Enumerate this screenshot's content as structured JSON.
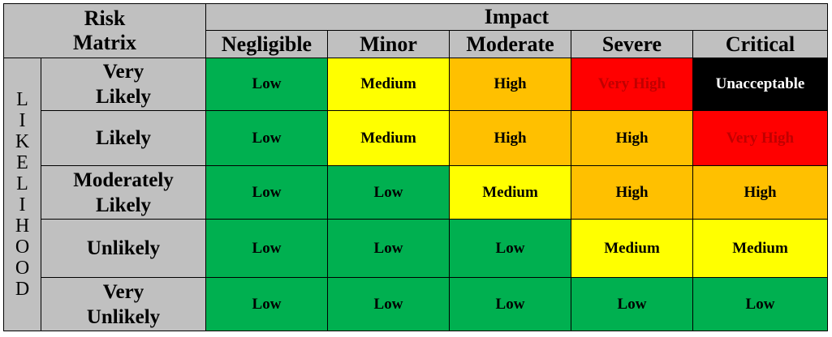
{
  "title_lines": [
    "Risk",
    "Matrix"
  ],
  "impact_header": "Impact",
  "impact_levels": [
    "Negligible",
    "Minor",
    "Moderate",
    "Severe",
    "Critical"
  ],
  "likelihood_letters": [
    "L",
    "I",
    "K",
    "E",
    "L",
    "I",
    "H",
    "O",
    "O",
    "D"
  ],
  "rows": [
    {
      "label_lines": [
        "Very",
        "Likely"
      ],
      "cells": [
        "Low",
        "Medium",
        "High",
        "Very High",
        "Unacceptable"
      ],
      "colors": [
        "green",
        "yellow",
        "orange",
        "red",
        "black"
      ]
    },
    {
      "label_lines": [
        "Likely"
      ],
      "cells": [
        "Low",
        "Medium",
        "High",
        "High",
        "Very High"
      ],
      "colors": [
        "green",
        "yellow",
        "orange",
        "orange",
        "red"
      ]
    },
    {
      "label_lines": [
        "Moderately",
        "Likely"
      ],
      "cells": [
        "Low",
        "Low",
        "Medium",
        "High",
        "High"
      ],
      "colors": [
        "green",
        "green",
        "yellow",
        "orange",
        "orange"
      ]
    },
    {
      "label_lines": [
        "Unlikely"
      ],
      "cells": [
        "Low",
        "Low",
        "Low",
        "Medium",
        "Medium"
      ],
      "colors": [
        "green",
        "green",
        "green",
        "yellow",
        "yellow"
      ]
    },
    {
      "label_lines": [
        "Very",
        "Unlikely"
      ],
      "cells": [
        "Low",
        "Low",
        "Low",
        "Low",
        "Low"
      ],
      "colors": [
        "green",
        "green",
        "green",
        "green",
        "green"
      ]
    }
  ],
  "palette": {
    "green": "#00b050",
    "yellow": "#ffff00",
    "orange": "#ffc000",
    "red": "#ff0000",
    "black": "#000000",
    "header_gray": "#c0c0c0"
  }
}
